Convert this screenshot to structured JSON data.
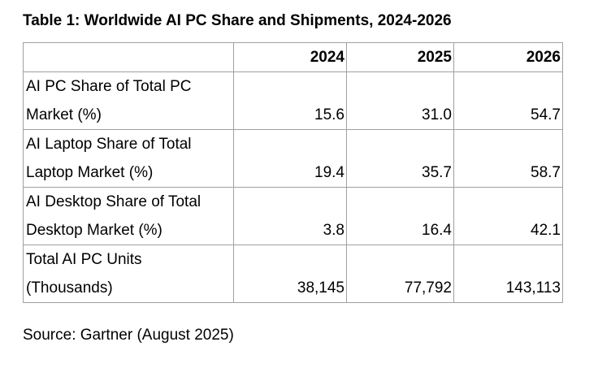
{
  "title": "Table 1: Worldwide AI PC Share and Shipments, 2024-2026",
  "table": {
    "headers": [
      "",
      "2024",
      "2025",
      "2026"
    ],
    "rows": [
      {
        "label": "AI PC Share of Total PC Market (%)",
        "values": [
          "15.6",
          "31.0",
          "54.7"
        ]
      },
      {
        "label": "AI Laptop Share of Total Laptop Market (%)",
        "values": [
          "19.4",
          "35.7",
          "58.7"
        ]
      },
      {
        "label": "AI Desktop Share of Total Desktop Market (%)",
        "values": [
          "3.8",
          "16.4",
          "42.1"
        ]
      },
      {
        "label": "Total AI PC Units (Thousands)",
        "values": [
          "38,145",
          "77,792",
          "143,113"
        ]
      }
    ]
  },
  "source": "Source: Gartner (August 2025)"
}
